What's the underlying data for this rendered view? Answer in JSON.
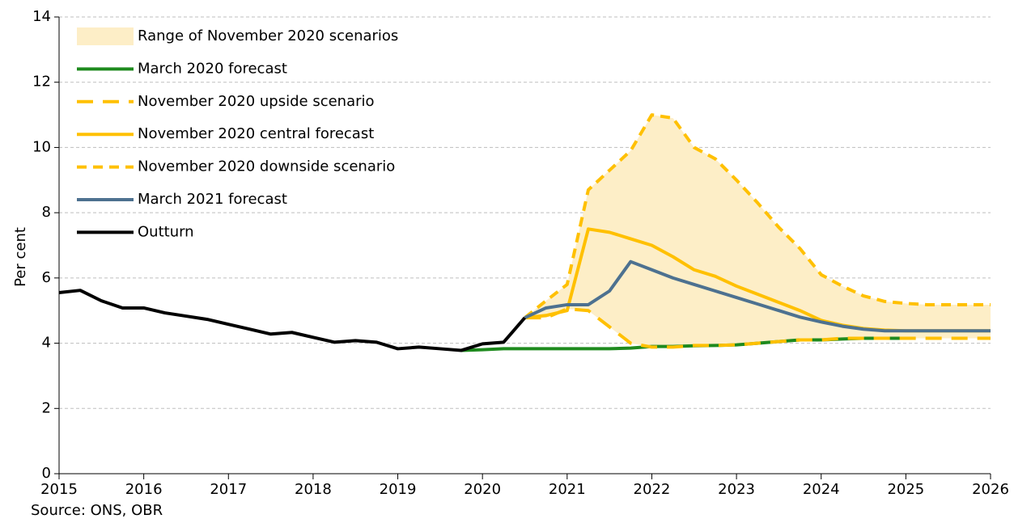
{
  "chart_data": {
    "type": "line",
    "axis_label_y": "Per cent",
    "source": "Source: ONS, OBR",
    "x": [
      2015,
      2015.25,
      2015.5,
      2015.75,
      2016,
      2016.25,
      2016.5,
      2016.75,
      2017,
      2017.25,
      2017.5,
      2017.75,
      2018,
      2018.25,
      2018.5,
      2018.75,
      2019,
      2019.25,
      2019.5,
      2019.75,
      2020,
      2020.25,
      2020.5,
      2020.75,
      2021,
      2021.25,
      2021.5,
      2021.75,
      2022,
      2022.25,
      2022.5,
      2022.75,
      2023,
      2023.25,
      2023.5,
      2023.75,
      2024,
      2024.25,
      2024.5,
      2024.75,
      2025,
      2025.25,
      2025.5,
      2025.75,
      2026
    ],
    "xlim": [
      2015,
      2026
    ],
    "xticks": [
      2015,
      2016,
      2017,
      2018,
      2019,
      2020,
      2021,
      2022,
      2023,
      2024,
      2025,
      2026
    ],
    "ylim": [
      0,
      14
    ],
    "yticks": [
      0,
      2,
      4,
      6,
      8,
      10,
      12,
      14
    ],
    "grid": true,
    "legend": "top-left",
    "range": {
      "name": "Range of November 2020 scenarios",
      "color": "#fdeec7"
    },
    "series": [
      {
        "name": "March 2020 forecast",
        "color": "#1e8a1e",
        "dash": "solid",
        "values": [
          null,
          null,
          null,
          null,
          null,
          null,
          null,
          null,
          null,
          null,
          null,
          null,
          null,
          null,
          null,
          null,
          null,
          null,
          null,
          3.78,
          3.8,
          3.83,
          3.83,
          3.83,
          3.83,
          3.83,
          3.83,
          3.85,
          3.9,
          3.9,
          3.92,
          3.93,
          3.95,
          4.0,
          4.05,
          4.1,
          4.1,
          4.13,
          4.15,
          4.15,
          4.15,
          null,
          null,
          null,
          null
        ]
      },
      {
        "name": "November 2020 upside scenario",
        "color": "#ffc000",
        "dash": "long",
        "values": [
          null,
          null,
          null,
          null,
          null,
          null,
          null,
          null,
          null,
          null,
          null,
          null,
          null,
          null,
          null,
          null,
          null,
          null,
          null,
          null,
          null,
          null,
          4.78,
          4.78,
          5.05,
          5.0,
          4.5,
          4.0,
          3.88,
          3.88,
          3.93,
          3.93,
          3.95,
          4.0,
          4.05,
          4.1,
          4.1,
          4.15,
          4.15,
          4.15,
          4.15,
          4.15,
          4.15,
          4.15,
          4.15
        ]
      },
      {
        "name": "November 2020 central forecast",
        "color": "#ffc000",
        "dash": "solid",
        "values": [
          null,
          null,
          null,
          null,
          null,
          null,
          null,
          null,
          null,
          null,
          null,
          null,
          null,
          null,
          null,
          null,
          null,
          null,
          null,
          null,
          null,
          null,
          4.78,
          4.85,
          5.0,
          7.5,
          7.4,
          7.2,
          7.0,
          6.65,
          6.25,
          6.05,
          5.75,
          5.5,
          5.25,
          5.0,
          4.7,
          4.55,
          4.45,
          4.4,
          4.38,
          4.38,
          4.38,
          4.38,
          4.38
        ]
      },
      {
        "name": "November 2020 downside scenario",
        "color": "#ffc000",
        "dash": "short",
        "values": [
          null,
          null,
          null,
          null,
          null,
          null,
          null,
          null,
          null,
          null,
          null,
          null,
          null,
          null,
          null,
          null,
          null,
          null,
          null,
          null,
          null,
          null,
          4.78,
          5.3,
          5.8,
          8.7,
          9.3,
          9.9,
          11.0,
          10.9,
          10.0,
          9.65,
          9.0,
          8.3,
          7.55,
          6.9,
          6.1,
          5.75,
          5.45,
          5.28,
          5.22,
          5.18,
          5.18,
          5.18,
          5.18
        ]
      },
      {
        "name": "March 2021 forecast",
        "color": "#4d7190",
        "dash": "solid",
        "values": [
          null,
          null,
          null,
          null,
          null,
          null,
          null,
          null,
          null,
          null,
          null,
          null,
          null,
          null,
          null,
          null,
          null,
          null,
          null,
          null,
          null,
          null,
          4.78,
          5.08,
          5.18,
          5.18,
          5.6,
          6.5,
          6.25,
          6.0,
          5.8,
          5.6,
          5.4,
          5.2,
          5.0,
          4.8,
          4.65,
          4.52,
          4.43,
          4.38,
          4.38,
          4.38,
          4.38,
          4.38,
          4.38
        ]
      },
      {
        "name": "Outturn",
        "color": "#000000",
        "dash": "solid",
        "values": [
          5.55,
          5.62,
          5.3,
          5.08,
          5.08,
          4.93,
          4.83,
          4.73,
          4.58,
          4.43,
          4.28,
          4.33,
          4.18,
          4.03,
          4.08,
          4.03,
          3.83,
          3.88,
          3.83,
          3.78,
          3.98,
          4.03,
          4.78,
          null,
          null,
          null,
          null,
          null,
          null,
          null,
          null,
          null,
          null,
          null,
          null,
          null,
          null,
          null,
          null,
          null,
          null,
          null,
          null,
          null,
          null
        ]
      }
    ]
  }
}
